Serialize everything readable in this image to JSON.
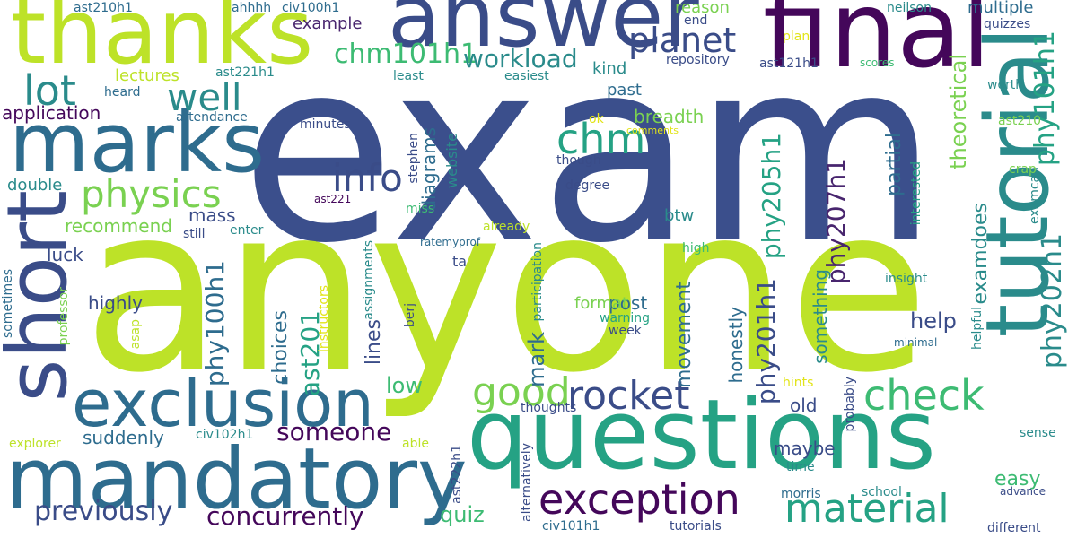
{
  "palette": {
    "navy": "#3b4f8c",
    "deep_purple": "#44075a",
    "violet": "#48256e",
    "indigo": "#3a4c88",
    "blue": "#2e6c8e",
    "teal": "#2a8b8b",
    "green_teal": "#25a284",
    "green": "#3dbb73",
    "light_green": "#7ad151",
    "lime": "#bde228",
    "yellow": "#e2e418"
  },
  "words": [
    {
      "key": "exam",
      "text": "exam"
    },
    {
      "key": "anyone",
      "text": "anyone"
    },
    {
      "key": "questions",
      "text": "questions"
    },
    {
      "key": "mandatory",
      "text": "mandatory"
    },
    {
      "key": "thanks",
      "text": "thanks"
    },
    {
      "key": "answer",
      "text": "answer"
    },
    {
      "key": "final",
      "text": "final"
    },
    {
      "key": "marks",
      "text": "marks"
    },
    {
      "key": "short",
      "text": "short"
    },
    {
      "key": "tutorial",
      "text": "tutorial"
    },
    {
      "key": "exclusion",
      "text": "exclusion"
    },
    {
      "key": "exception",
      "text": "exception"
    },
    {
      "key": "material",
      "text": "material"
    },
    {
      "key": "rocket",
      "text": "rocket"
    },
    {
      "key": "check",
      "text": "check"
    },
    {
      "key": "good",
      "text": "good"
    },
    {
      "key": "physics",
      "text": "physics"
    },
    {
      "key": "planet",
      "text": "planet"
    },
    {
      "key": "well",
      "text": "well"
    },
    {
      "key": "lot",
      "text": "lot"
    },
    {
      "key": "info",
      "text": "info"
    },
    {
      "key": "chm",
      "text": "chm"
    },
    {
      "key": "previously",
      "text": "previously"
    },
    {
      "key": "concurrently",
      "text": "concurrently"
    },
    {
      "key": "someone",
      "text": "someone"
    },
    {
      "key": "chm101h1",
      "text": "chm101h1"
    },
    {
      "key": "workload",
      "text": "workload"
    },
    {
      "key": "phy101h1",
      "text": "phy101h1"
    },
    {
      "key": "phy202h1",
      "text": "phy202h1"
    },
    {
      "key": "phy205h1",
      "text": "phy205h1"
    },
    {
      "key": "phy207h1",
      "text": "phy207h1"
    },
    {
      "key": "phy201h1",
      "text": "phy201h1"
    },
    {
      "key": "phy100h1",
      "text": "phy100h1"
    },
    {
      "key": "ast201",
      "text": "ast201"
    },
    {
      "key": "theoretical",
      "text": "theoretical"
    },
    {
      "key": "examdoes",
      "text": "examdoes"
    },
    {
      "key": "examcan",
      "text": "examcan"
    },
    {
      "key": "partial",
      "text": "partial"
    },
    {
      "key": "quiz",
      "text": "quiz"
    },
    {
      "key": "easy",
      "text": "easy"
    },
    {
      "key": "help",
      "text": "help"
    },
    {
      "key": "low",
      "text": "low"
    },
    {
      "key": "mark",
      "text": "mark"
    },
    {
      "key": "diagrams",
      "text": "diagrams"
    },
    {
      "key": "website",
      "text": "website"
    },
    {
      "key": "choices",
      "text": "choices"
    },
    {
      "key": "lines",
      "text": "lines"
    },
    {
      "key": "movement",
      "text": "movement"
    },
    {
      "key": "honestly",
      "text": "honestly"
    },
    {
      "key": "something",
      "text": "something"
    },
    {
      "key": "maybe",
      "text": "maybe"
    },
    {
      "key": "old",
      "text": "old"
    },
    {
      "key": "suddenly",
      "text": "suddenly"
    },
    {
      "key": "recommend",
      "text": "recommend"
    },
    {
      "key": "mass",
      "text": "mass"
    },
    {
      "key": "highly",
      "text": "highly"
    },
    {
      "key": "luck",
      "text": "luck"
    },
    {
      "key": "application",
      "text": "application"
    },
    {
      "key": "double",
      "text": "double"
    },
    {
      "key": "lectures",
      "text": "lectures"
    },
    {
      "key": "heard",
      "text": "heard"
    },
    {
      "key": "attendance",
      "text": "attendance"
    },
    {
      "key": "example",
      "text": "example"
    },
    {
      "key": "reason",
      "text": "reason"
    },
    {
      "key": "multiple",
      "text": "multiple"
    },
    {
      "key": "quizzes",
      "text": "quizzes"
    },
    {
      "key": "neilson",
      "text": "neilson"
    },
    {
      "key": "end",
      "text": "end"
    },
    {
      "key": "plan",
      "text": "plan"
    },
    {
      "key": "repository",
      "text": "repository"
    },
    {
      "key": "ast121h1",
      "text": "ast121h1"
    },
    {
      "key": "scores",
      "text": "scores"
    },
    {
      "key": "worth",
      "text": "worth"
    },
    {
      "key": "kind",
      "text": "kind"
    },
    {
      "key": "past",
      "text": "past"
    },
    {
      "key": "breadth",
      "text": "breadth"
    },
    {
      "key": "ok",
      "text": "ok"
    },
    {
      "key": "comments",
      "text": "comments"
    },
    {
      "key": "though",
      "text": "though"
    },
    {
      "key": "degree",
      "text": "degree"
    },
    {
      "key": "btw",
      "text": "btw"
    },
    {
      "key": "already",
      "text": "already"
    },
    {
      "key": "high",
      "text": "high"
    },
    {
      "key": "ratemyprof",
      "text": "ratemyprof"
    },
    {
      "key": "ta",
      "text": "ta"
    },
    {
      "key": "post",
      "text": "post"
    },
    {
      "key": "format",
      "text": "format"
    },
    {
      "key": "warning",
      "text": "warning"
    },
    {
      "key": "week",
      "text": "week"
    },
    {
      "key": "insight",
      "text": "insight"
    },
    {
      "key": "minimal",
      "text": "minimal"
    },
    {
      "key": "hints",
      "text": "hints"
    },
    {
      "key": "probably",
      "text": "probably"
    },
    {
      "key": "sense",
      "text": "sense"
    },
    {
      "key": "thoughts",
      "text": "thoughts"
    },
    {
      "key": "able",
      "text": "able"
    },
    {
      "key": "ast222h1",
      "text": "ast222h1"
    },
    {
      "key": "alternatively",
      "text": "alternatively"
    },
    {
      "key": "civ101h1",
      "text": "civ101h1"
    },
    {
      "key": "tutorials",
      "text": "tutorials"
    },
    {
      "key": "morris",
      "text": "morris"
    },
    {
      "key": "time",
      "text": "time"
    },
    {
      "key": "school",
      "text": "school"
    },
    {
      "key": "advance",
      "text": "advance"
    },
    {
      "key": "different",
      "text": "different"
    },
    {
      "key": "explorer",
      "text": "explorer"
    },
    {
      "key": "civ102h1",
      "text": "civ102h1"
    },
    {
      "key": "sometimes",
      "text": "sometimes"
    },
    {
      "key": "professor",
      "text": "professor"
    },
    {
      "key": "asap",
      "text": "asap"
    },
    {
      "key": "assignments",
      "text": "assignments"
    },
    {
      "key": "instructors",
      "text": "instructors"
    },
    {
      "key": "participation",
      "text": "participation"
    },
    {
      "key": "berj",
      "text": "berj"
    },
    {
      "key": "helpful",
      "text": "helpful"
    },
    {
      "key": "ast210",
      "text": "ast210"
    },
    {
      "key": "crap",
      "text": "crap"
    },
    {
      "key": "interested",
      "text": "interested"
    },
    {
      "key": "ast210h1",
      "text": "ast210h1"
    },
    {
      "key": "ahhhh",
      "text": "ahhhh"
    },
    {
      "key": "civ100h1",
      "text": "civ100h1"
    },
    {
      "key": "ast221h1",
      "text": "ast221h1"
    },
    {
      "key": "least",
      "text": "least"
    },
    {
      "key": "easiest",
      "text": "easiest"
    },
    {
      "key": "minutes",
      "text": "minutes"
    },
    {
      "key": "stephen",
      "text": "stephen"
    },
    {
      "key": "ast221",
      "text": "ast221"
    },
    {
      "key": "miss",
      "text": "miss"
    },
    {
      "key": "still",
      "text": "still"
    },
    {
      "key": "enter",
      "text": "enter"
    }
  ]
}
